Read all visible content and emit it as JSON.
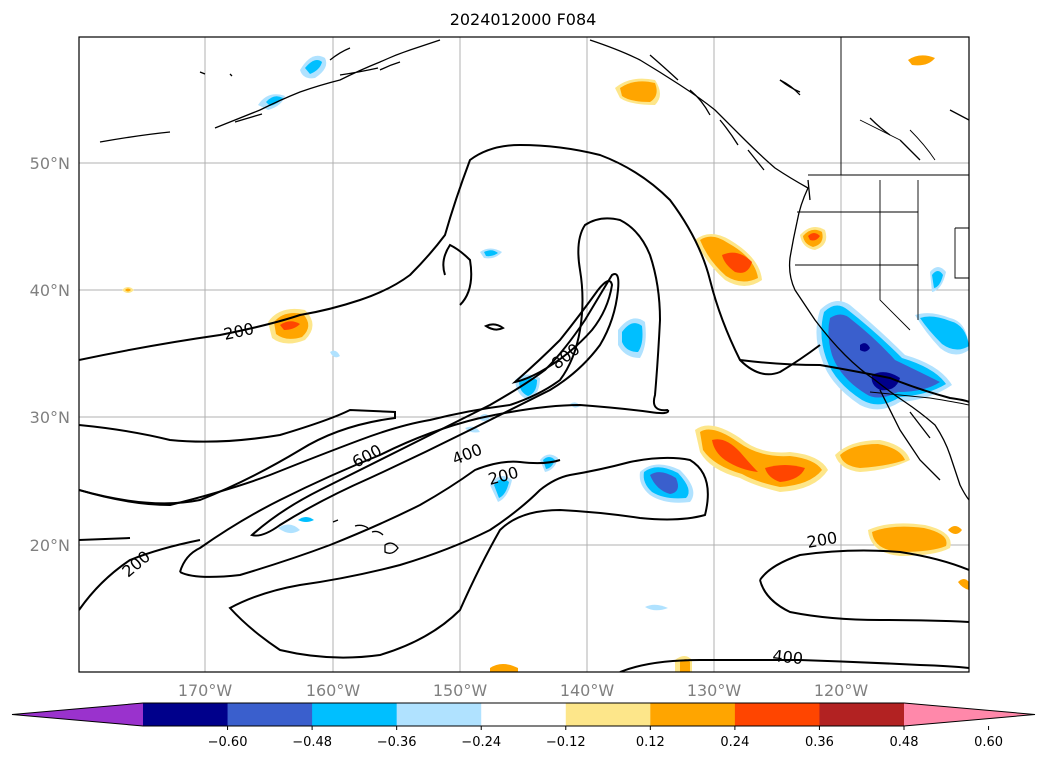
{
  "title": "2024012000 F084",
  "map": {
    "lat_ticks": [
      "20°N",
      "30°N",
      "40°N",
      "50°N"
    ],
    "lon_ticks": [
      "170°W",
      "160°W",
      "150°W",
      "140°W",
      "130°W",
      "120°W"
    ],
    "gridlines": true,
    "coastlines": true,
    "state_borders": true
  },
  "contours": {
    "labels": [
      "200",
      "200",
      "200",
      "200",
      "600",
      "400",
      "800",
      "400"
    ],
    "line_color": "#000000"
  },
  "colorbar": {
    "ticks": [
      "−0.60",
      "−0.48",
      "−0.36",
      "−0.24",
      "−0.12",
      "0.12",
      "0.24",
      "0.36",
      "0.48",
      "0.60"
    ],
    "colors": [
      "#9a32cd",
      "#00008b",
      "#3a5fcd",
      "#00bfff",
      "#b0e2ff",
      "#ffffff",
      "#fde68a",
      "#ffa500",
      "#ff4500",
      "#b22222",
      "#ff88aa"
    ],
    "extend": "both"
  }
}
